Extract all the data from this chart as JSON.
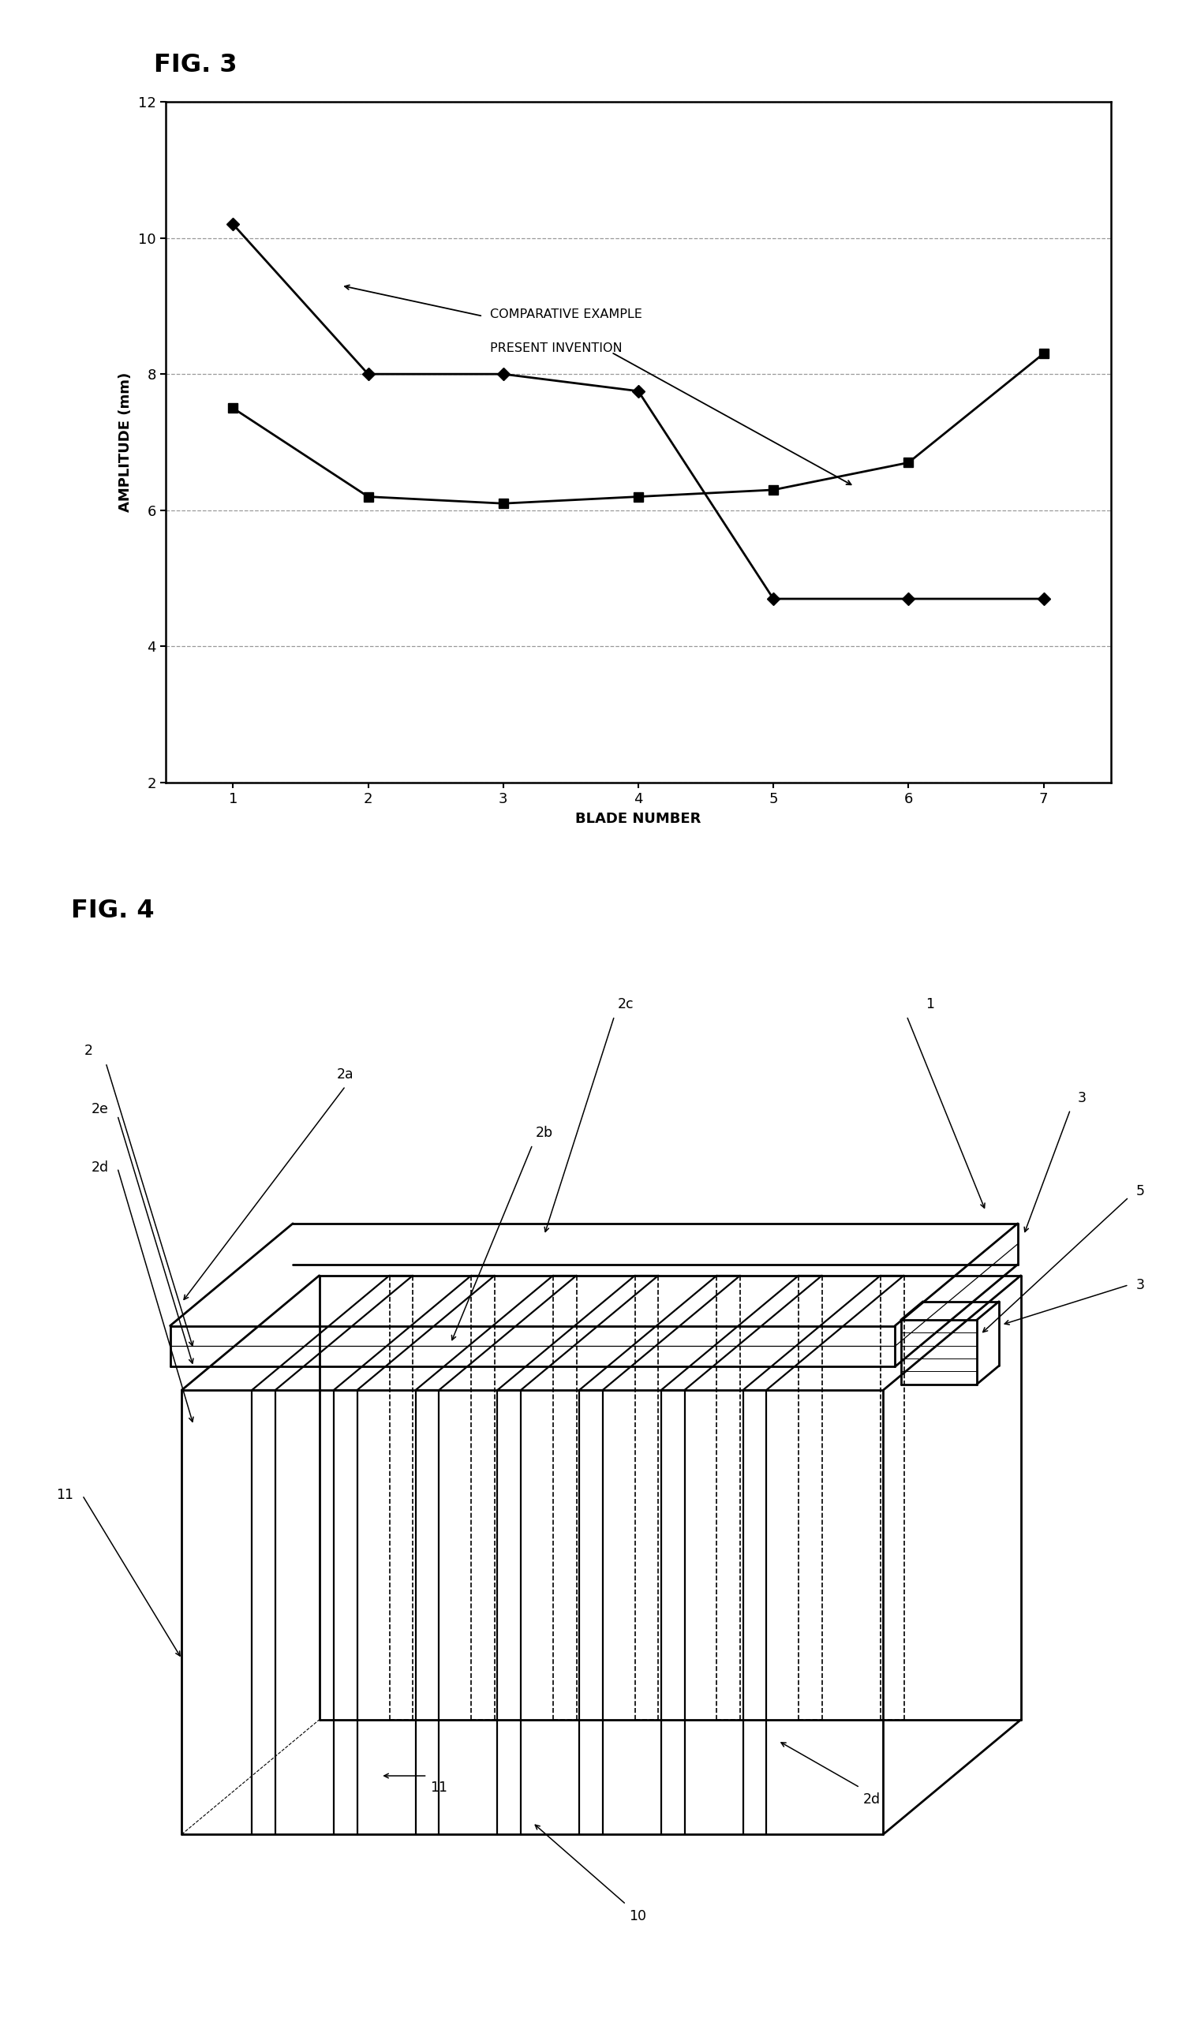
{
  "fig3": {
    "title": "FIG. 3",
    "comparative_x": [
      1,
      2,
      3,
      4,
      5,
      6,
      7
    ],
    "comparative_y": [
      10.2,
      8.0,
      8.0,
      7.75,
      4.7,
      4.7,
      4.7
    ],
    "invention_x": [
      1,
      2,
      3,
      4,
      5,
      6,
      7
    ],
    "invention_y": [
      7.5,
      6.2,
      6.1,
      6.2,
      6.3,
      6.7,
      8.3
    ],
    "xlabel": "BLADE NUMBER",
    "ylabel": "AMPLITUDE (mm)",
    "yticks": [
      2,
      4,
      6,
      8,
      10,
      12
    ],
    "xticks": [
      1,
      2,
      3,
      4,
      5,
      6,
      7
    ],
    "ylim": [
      2,
      12
    ],
    "xlim": [
      0.5,
      7.5
    ],
    "legend_comparative": "COMPARATIVE EXAMPLE",
    "legend_invention": "PRESENT INVENTION"
  },
  "fig4": {
    "title": "FIG. 4"
  }
}
